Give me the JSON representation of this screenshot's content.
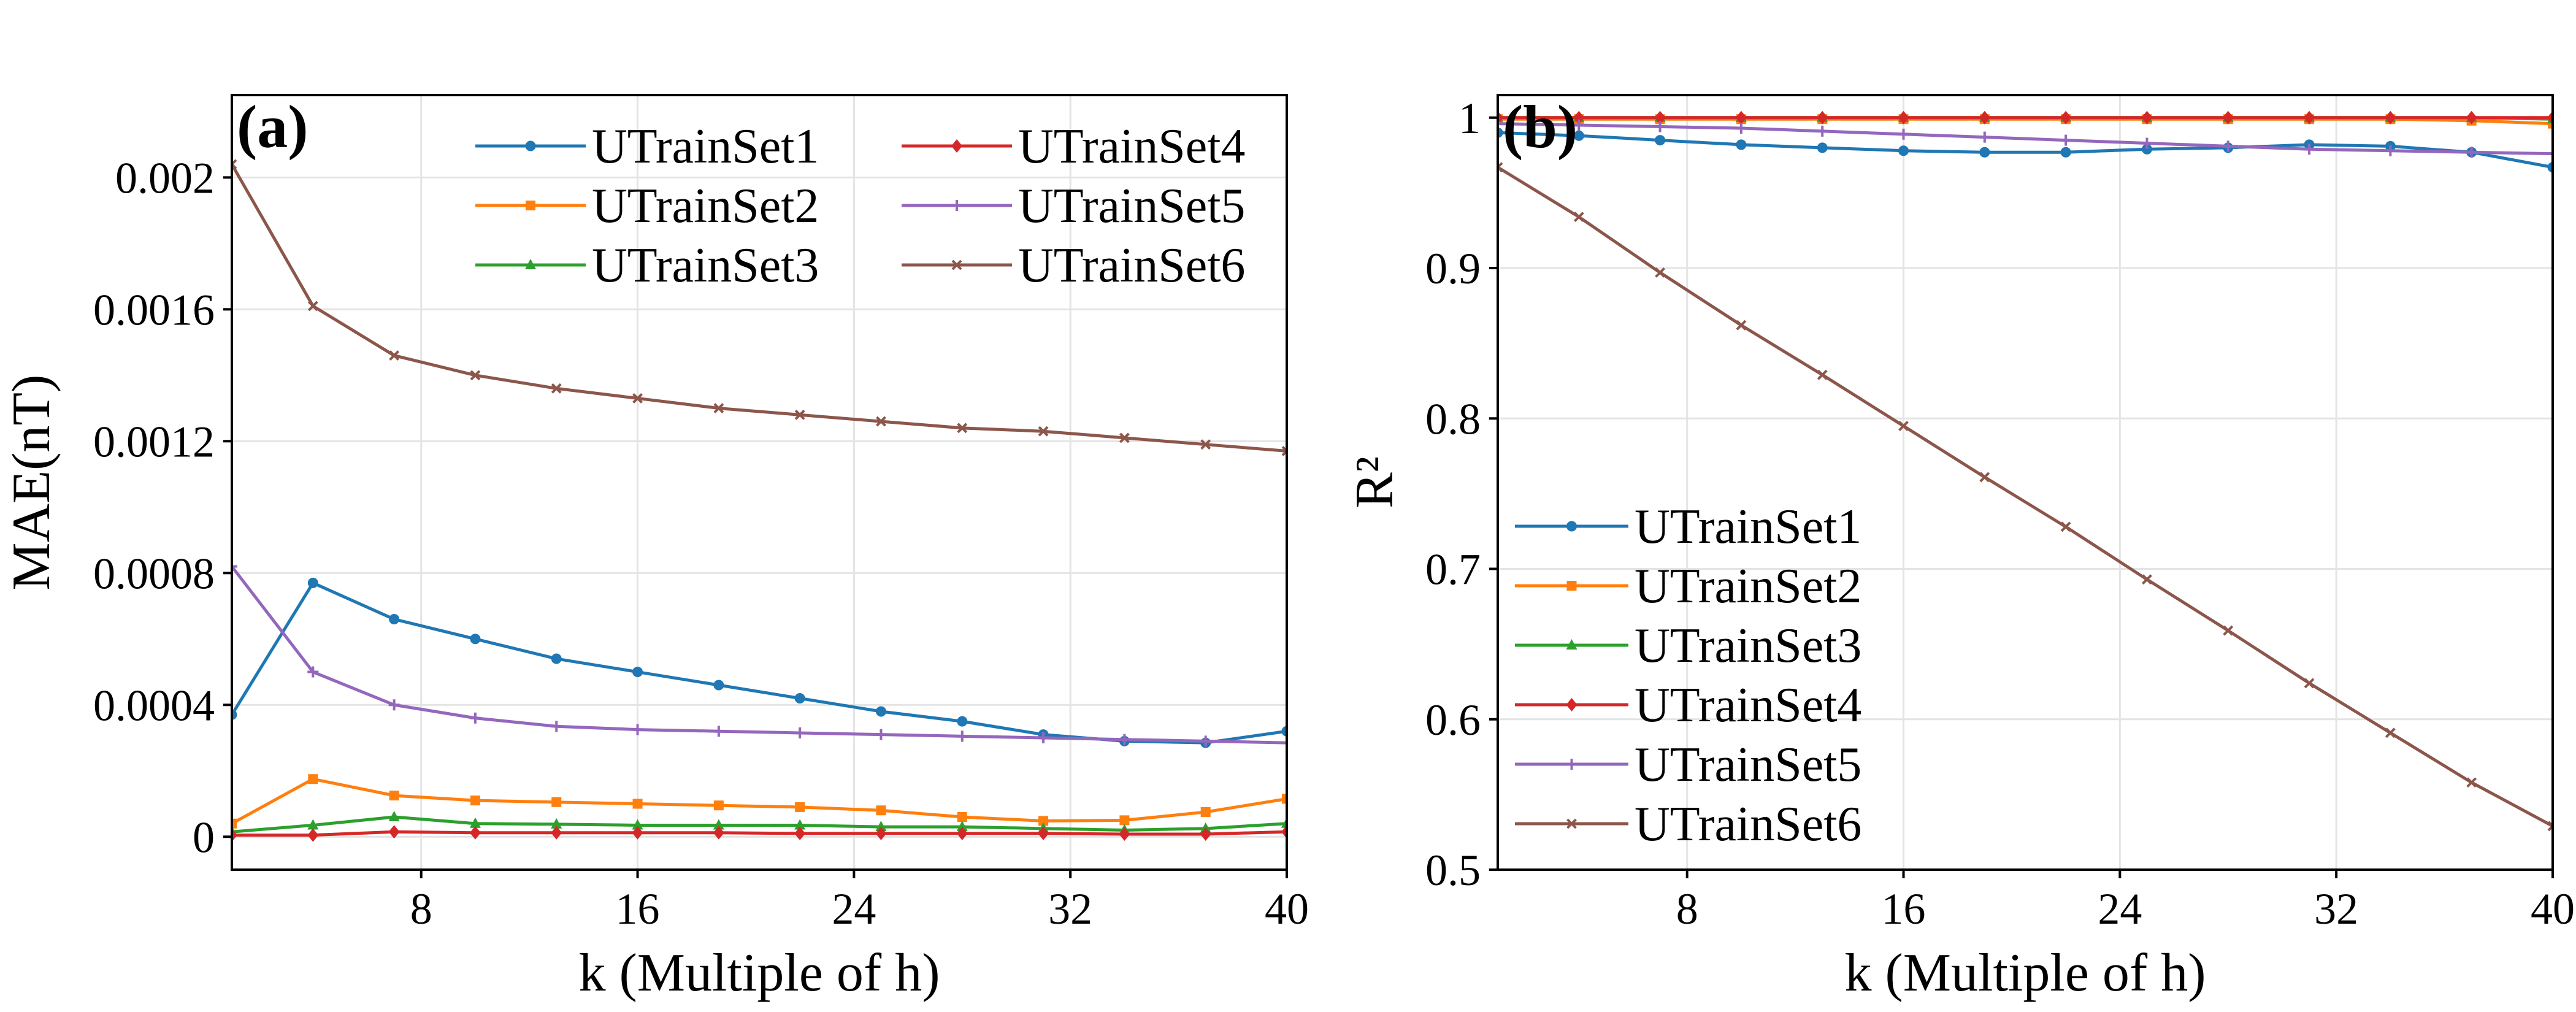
{
  "chart_data": [
    {
      "type": "line",
      "panel_label": "(a)",
      "xlabel": "k (Multiple of h)",
      "ylabel": "MAE(nT)",
      "xlim": [
        1,
        40
      ],
      "ylim": [
        -0.0001,
        0.00225
      ],
      "xticks": [
        8,
        16,
        24,
        32,
        40
      ],
      "xtick_labels": [
        "8",
        "16",
        "24",
        "32",
        "40"
      ],
      "yticks": [
        0,
        0.0004,
        0.0008,
        0.0012,
        0.0016,
        0.002
      ],
      "ytick_labels": [
        "0",
        "0.0004",
        "0.0008",
        "0.0012",
        "0.0016",
        "0.002"
      ],
      "grid": true,
      "legend_position": "top-right",
      "legend_columns": 2,
      "x": [
        1,
        4,
        7,
        10,
        13,
        16,
        19,
        22,
        25,
        28,
        31,
        34,
        37,
        40
      ],
      "series": [
        {
          "name": "UTrainSet1",
          "color": "#1f77b4",
          "marker": "circle",
          "values": [
            0.00037,
            0.00077,
            0.00066,
            0.0006,
            0.00054,
            0.0005,
            0.00046,
            0.00042,
            0.00038,
            0.00035,
            0.00031,
            0.00029,
            0.000285,
            0.00032
          ]
        },
        {
          "name": "UTrainSet2",
          "color": "#ff7f0e",
          "marker": "square",
          "values": [
            4e-05,
            0.000175,
            0.000125,
            0.00011,
            0.000105,
            0.0001,
            9.5e-05,
            9e-05,
            8e-05,
            6e-05,
            4.8e-05,
            5e-05,
            7.5e-05,
            0.000115
          ]
        },
        {
          "name": "UTrainSet3",
          "color": "#2ca02c",
          "marker": "triangle",
          "values": [
            1.5e-05,
            3.5e-05,
            6e-05,
            4e-05,
            3.8e-05,
            3.5e-05,
            3.5e-05,
            3.5e-05,
            3e-05,
            3e-05,
            2.5e-05,
            2e-05,
            2.5e-05,
            4e-05
          ]
        },
        {
          "name": "UTrainSet4",
          "color": "#d62728",
          "marker": "diamond",
          "values": [
            5e-06,
            5e-06,
            1.5e-05,
            1.2e-05,
            1.2e-05,
            1.2e-05,
            1.2e-05,
            1e-05,
            1e-05,
            1e-05,
            1e-05,
            8e-06,
            8e-06,
            1.5e-05
          ]
        },
        {
          "name": "UTrainSet5",
          "color": "#9467bd",
          "marker": "plus",
          "values": [
            0.00082,
            0.0005,
            0.0004,
            0.00036,
            0.000335,
            0.000325,
            0.00032,
            0.000315,
            0.00031,
            0.000305,
            0.0003,
            0.000295,
            0.00029,
            0.000285
          ]
        },
        {
          "name": "UTrainSet6",
          "color": "#8c564b",
          "marker": "x",
          "values": [
            0.00204,
            0.00161,
            0.00146,
            0.0014,
            0.00136,
            0.00133,
            0.0013,
            0.00128,
            0.00126,
            0.00124,
            0.00123,
            0.00121,
            0.00119,
            0.00117
          ]
        }
      ]
    },
    {
      "type": "line",
      "panel_label": "(b)",
      "xlabel": "k (Multiple of h)",
      "ylabel": "R²",
      "xlim": [
        1,
        40
      ],
      "ylim": [
        0.5,
        1.015
      ],
      "xticks": [
        8,
        16,
        24,
        32,
        40
      ],
      "xtick_labels": [
        "8",
        "16",
        "24",
        "32",
        "40"
      ],
      "yticks": [
        0.5,
        0.6,
        0.7,
        0.8,
        0.9,
        1.0
      ],
      "ytick_labels": [
        "0.5",
        "0.6",
        "0.7",
        "0.8",
        "0.9",
        "1"
      ],
      "grid": true,
      "legend_position": "center-left",
      "legend_columns": 1,
      "x": [
        1,
        4,
        7,
        10,
        13,
        16,
        19,
        22,
        25,
        28,
        31,
        34,
        37,
        40
      ],
      "series": [
        {
          "name": "UTrainSet1",
          "color": "#1f77b4",
          "marker": "circle",
          "values": [
            0.99,
            0.988,
            0.985,
            0.982,
            0.98,
            0.978,
            0.977,
            0.977,
            0.979,
            0.98,
            0.982,
            0.981,
            0.977,
            0.967
          ]
        },
        {
          "name": "UTrainSet2",
          "color": "#ff7f0e",
          "marker": "square",
          "values": [
            0.999,
            0.999,
            0.999,
            0.999,
            0.999,
            0.999,
            0.999,
            0.999,
            0.999,
            0.999,
            0.999,
            0.999,
            0.998,
            0.996
          ]
        },
        {
          "name": "UTrainSet3",
          "color": "#2ca02c",
          "marker": "triangle",
          "values": [
            1.0,
            1.0,
            1.0,
            1.0,
            1.0,
            1.0,
            1.0,
            1.0,
            1.0,
            1.0,
            1.0,
            1.0,
            1.0,
            0.999
          ]
        },
        {
          "name": "UTrainSet4",
          "color": "#d62728",
          "marker": "diamond",
          "values": [
            1.0,
            1.0,
            1.0,
            1.0,
            1.0,
            1.0,
            1.0,
            1.0,
            1.0,
            1.0,
            1.0,
            1.0,
            1.0,
            1.0
          ]
        },
        {
          "name": "UTrainSet5",
          "color": "#9467bd",
          "marker": "plus",
          "values": [
            0.996,
            0.995,
            0.994,
            0.993,
            0.991,
            0.989,
            0.987,
            0.985,
            0.983,
            0.981,
            0.979,
            0.978,
            0.977,
            0.976
          ]
        },
        {
          "name": "UTrainSet6",
          "color": "#8c564b",
          "marker": "x",
          "values": [
            0.967,
            0.934,
            0.897,
            0.862,
            0.829,
            0.795,
            0.761,
            0.728,
            0.693,
            0.659,
            0.624,
            0.591,
            0.558,
            0.529
          ]
        }
      ]
    }
  ]
}
